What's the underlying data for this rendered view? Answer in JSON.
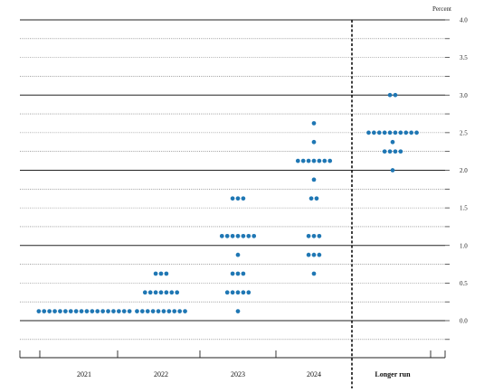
{
  "chart_data": {
    "type": "scatter",
    "ylabel": "Percent",
    "ylim": [
      -0.375,
      4.0
    ],
    "y_ticks": [
      "4.0",
      "3.5",
      "3.0",
      "2.5",
      "2.0",
      "1.5",
      "1.0",
      "0.5",
      "0.0"
    ],
    "grid": "horizontal lines; solid at whole percents, dotted at quarter percents",
    "categories": [
      "2021",
      "2022",
      "2023",
      "2024",
      "Longer run"
    ],
    "separator": "dashed vertical line between 2024 and Longer run",
    "dot_color": "#1f77b4",
    "points": [
      {
        "category": "2021",
        "value": 0.125,
        "count": 18
      },
      {
        "category": "2022",
        "value": 0.125,
        "count": 10
      },
      {
        "category": "2022",
        "value": 0.375,
        "count": 7
      },
      {
        "category": "2022",
        "value": 0.625,
        "count": 3
      },
      {
        "category": "2023",
        "value": 0.125,
        "count": 1
      },
      {
        "category": "2023",
        "value": 0.375,
        "count": 5
      },
      {
        "category": "2023",
        "value": 0.625,
        "count": 3
      },
      {
        "category": "2023",
        "value": 0.875,
        "count": 1
      },
      {
        "category": "2023",
        "value": 1.125,
        "count": 7
      },
      {
        "category": "2023",
        "value": 1.625,
        "count": 3
      },
      {
        "category": "2024",
        "value": 0.625,
        "count": 1
      },
      {
        "category": "2024",
        "value": 0.875,
        "count": 3
      },
      {
        "category": "2024",
        "value": 1.125,
        "count": 3
      },
      {
        "category": "2024",
        "value": 1.625,
        "count": 2
      },
      {
        "category": "2024",
        "value": 1.875,
        "count": 1
      },
      {
        "category": "2024",
        "value": 2.125,
        "count": 7
      },
      {
        "category": "2024",
        "value": 2.375,
        "count": 1
      },
      {
        "category": "2024",
        "value": 2.625,
        "count": 1
      },
      {
        "category": "Longer run",
        "value": 2.0,
        "count": 1
      },
      {
        "category": "Longer run",
        "value": 2.25,
        "count": 4
      },
      {
        "category": "Longer run",
        "value": 2.375,
        "count": 1
      },
      {
        "category": "Longer run",
        "value": 2.5,
        "count": 10
      },
      {
        "category": "Longer run",
        "value": 3.0,
        "count": 2
      }
    ]
  }
}
